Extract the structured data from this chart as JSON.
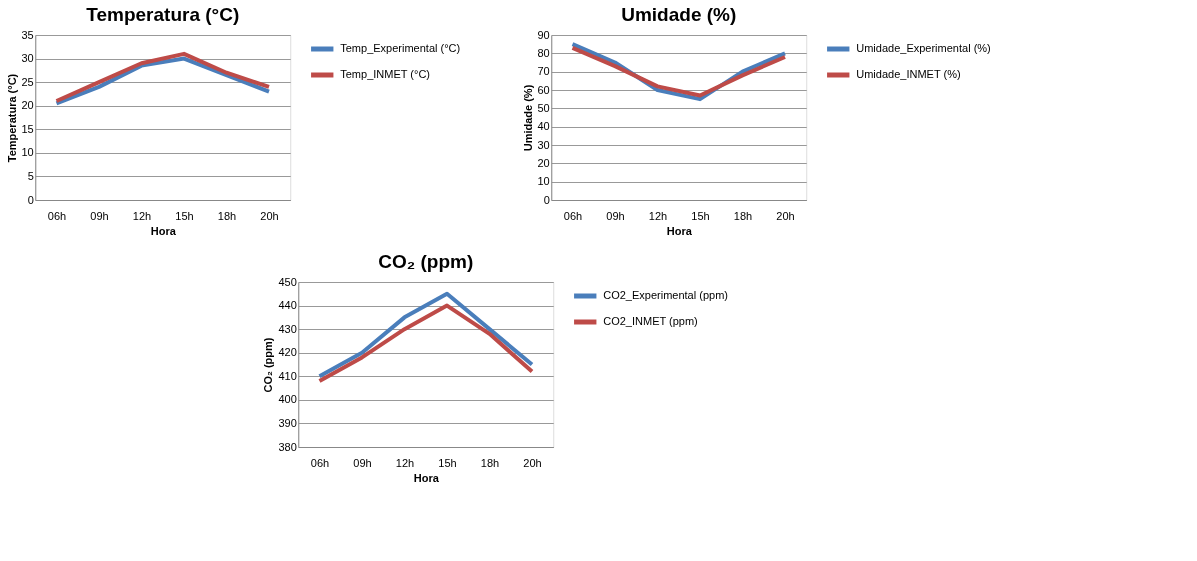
{
  "chart_data": [
    {
      "type": "line",
      "title": "Temperatura (°C)",
      "xlabel": "Hora",
      "ylabel": "Temperatura (°C)",
      "categories": [
        "06h",
        "09h",
        "12h",
        "15h",
        "18h",
        "20h"
      ],
      "ylim": [
        0,
        35
      ],
      "yticks": [
        0,
        5,
        10,
        15,
        20,
        25,
        30,
        35
      ],
      "grid": "y",
      "legend": "right",
      "marker": "none",
      "series": [
        {
          "name": "Temp_Experimental (°C)",
          "color": "#4a7ebb",
          "values": [
            20.5,
            24,
            28.5,
            30,
            26.5,
            23
          ]
        },
        {
          "name": "Temp_INMET (°C)",
          "color": "#be4b48",
          "values": [
            21,
            25,
            29,
            31,
            27,
            24
          ]
        }
      ]
    },
    {
      "type": "line",
      "title": "Umidade (%)",
      "xlabel": "Hora",
      "ylabel": "Umidade (%)",
      "categories": [
        "06h",
        "09h",
        "12h",
        "15h",
        "18h",
        "20h"
      ],
      "ylim": [
        0,
        90
      ],
      "yticks": [
        0,
        10,
        20,
        30,
        40,
        50,
        60,
        70,
        80,
        90
      ],
      "grid": "y",
      "legend": "right",
      "marker": "none",
      "series": [
        {
          "name": "Umidade_Experimental (%)",
          "color": "#4a7ebb",
          "values": [
            85,
            75,
            60,
            55,
            70,
            80
          ]
        },
        {
          "name": "Umidade_INMET (%)",
          "color": "#be4b48",
          "values": [
            83,
            73,
            62,
            57,
            68,
            78
          ]
        }
      ]
    },
    {
      "type": "line",
      "title": "CO₂ (ppm)",
      "xlabel": "Hora",
      "ylabel": "CO₂ (ppm)",
      "categories": [
        "06h",
        "09h",
        "12h",
        "15h",
        "18h",
        "20h"
      ],
      "ylim": [
        380,
        450
      ],
      "yticks": [
        380,
        390,
        400,
        410,
        420,
        430,
        440,
        450
      ],
      "grid": "y",
      "legend": "right",
      "marker": "none",
      "series": [
        {
          "name": "CO2_Experimental (ppm)",
          "color": "#4a7ebb",
          "values": [
            410,
            420,
            435,
            445,
            430,
            415
          ]
        },
        {
          "name": "CO2_INMET (ppm)",
          "color": "#be4b48",
          "values": [
            408,
            418,
            430,
            440,
            428,
            412
          ]
        }
      ]
    }
  ]
}
